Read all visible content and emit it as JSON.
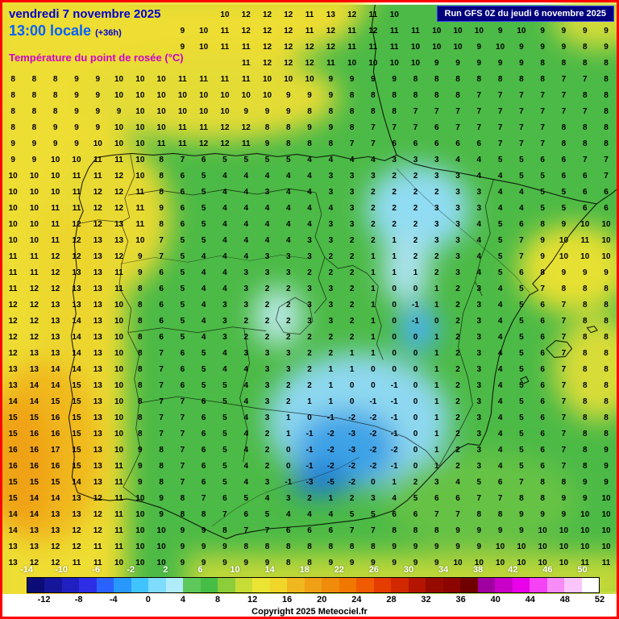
{
  "header": {
    "date_line": "vendredi 7 novembre 2025",
    "time_line": "13:00 locale",
    "time_offset": "(+36h)",
    "variable_line": "Température du point de rosée (°C)",
    "run_banner": "Run GFS 0Z du jeudi 6 novembre 2025"
  },
  "footer": {
    "copyright": "Copyright 2025 Meteociel.fr"
  },
  "colors": {
    "frame_border": "#ff0000",
    "date_text": "#0000d0",
    "time_text": "#0061ff",
    "variable_text": "#cf00cf",
    "banner_bg": "#00007d",
    "banner_text": "#ffffff"
  },
  "scale": {
    "min": -14,
    "max": 52,
    "step": 2,
    "top_labels": [
      -14,
      -10,
      -6,
      -2,
      2,
      6,
      10,
      14,
      18,
      22,
      26,
      30,
      34,
      38,
      42,
      46,
      50
    ],
    "bottom_labels": [
      -12,
      -8,
      -4,
      0,
      4,
      8,
      12,
      16,
      20,
      24,
      28,
      32,
      36,
      40,
      44,
      48,
      52
    ],
    "cell_colors": [
      "#0c0c78",
      "#16169b",
      "#2020c0",
      "#2e2ee6",
      "#2a62ff",
      "#2898ff",
      "#40c4ff",
      "#7edcff",
      "#b0ecfa",
      "#5ec85a",
      "#46be46",
      "#8cce3a",
      "#c8dc36",
      "#ece432",
      "#f0d628",
      "#f0b81e",
      "#f0a014",
      "#f08c0a",
      "#f07800",
      "#f05a00",
      "#e63c00",
      "#d22800",
      "#b41400",
      "#960a00",
      "#8c0500",
      "#700000",
      "#a000a0",
      "#c800c8",
      "#ea00ea",
      "#f542f5",
      "#f78cf7",
      "#fbc4fb",
      "#ffffff"
    ]
  },
  "grid": {
    "rows": [
      [
        "",
        "",
        "",
        "",
        "",
        "",
        "",
        "",
        "",
        "",
        10,
        12,
        12,
        12,
        11,
        13,
        12,
        11,
        10,
        "",
        "",
        "",
        "",
        "",
        "",
        "",
        "",
        "",
        ""
      ],
      [
        "",
        "",
        "",
        "",
        "",
        "",
        "",
        "",
        9,
        10,
        11,
        12,
        12,
        12,
        11,
        12,
        11,
        12,
        11,
        11,
        10,
        10,
        10,
        9,
        10,
        9,
        9,
        9,
        9
      ],
      [
        "",
        "",
        "",
        "",
        "",
        "",
        "",
        "",
        9,
        10,
        11,
        11,
        12,
        12,
        12,
        12,
        11,
        11,
        11,
        10,
        10,
        10,
        9,
        10,
        9,
        9,
        9,
        8,
        9
      ],
      [
        "",
        "",
        "",
        "",
        "",
        "",
        "",
        "",
        "",
        "",
        "",
        11,
        12,
        12,
        12,
        11,
        10,
        10,
        10,
        10,
        9,
        9,
        9,
        9,
        9,
        8,
        8,
        8,
        8
      ],
      [
        8,
        8,
        8,
        9,
        9,
        10,
        10,
        10,
        11,
        11,
        11,
        11,
        10,
        10,
        10,
        9,
        9,
        9,
        9,
        8,
        8,
        8,
        8,
        8,
        8,
        8,
        7,
        7,
        8
      ],
      [
        8,
        8,
        8,
        9,
        9,
        10,
        10,
        10,
        10,
        10,
        10,
        10,
        10,
        9,
        9,
        9,
        8,
        8,
        8,
        8,
        8,
        8,
        7,
        7,
        7,
        7,
        7,
        8,
        8
      ],
      [
        8,
        8,
        8,
        9,
        9,
        9,
        10,
        10,
        10,
        10,
        10,
        9,
        9,
        9,
        8,
        8,
        8,
        8,
        8,
        7,
        7,
        7,
        7,
        7,
        7,
        7,
        7,
        7,
        8
      ],
      [
        8,
        8,
        9,
        9,
        9,
        10,
        10,
        10,
        11,
        11,
        12,
        12,
        8,
        8,
        9,
        9,
        8,
        7,
        7,
        7,
        6,
        7,
        7,
        7,
        7,
        7,
        8,
        8,
        8
      ],
      [
        9,
        9,
        9,
        9,
        10,
        10,
        10,
        11,
        11,
        12,
        12,
        11,
        9,
        8,
        8,
        8,
        7,
        7,
        6,
        6,
        6,
        6,
        6,
        7,
        7,
        7,
        8,
        8,
        8
      ],
      [
        9,
        9,
        10,
        10,
        11,
        11,
        10,
        8,
        7,
        6,
        5,
        5,
        5,
        5,
        4,
        4,
        4,
        4,
        3,
        3,
        3,
        4,
        4,
        5,
        5,
        6,
        6,
        7,
        7
      ],
      [
        10,
        10,
        10,
        11,
        11,
        12,
        10,
        8,
        6,
        5,
        4,
        4,
        4,
        4,
        4,
        3,
        3,
        3,
        2,
        2,
        3,
        3,
        4,
        4,
        5,
        5,
        6,
        6,
        7
      ],
      [
        10,
        10,
        10,
        11,
        12,
        12,
        11,
        8,
        6,
        5,
        4,
        4,
        3,
        4,
        4,
        3,
        3,
        2,
        2,
        2,
        2,
        3,
        3,
        4,
        4,
        5,
        5,
        6,
        6
      ],
      [
        10,
        10,
        11,
        11,
        12,
        12,
        11,
        9,
        6,
        5,
        4,
        4,
        4,
        4,
        4,
        4,
        3,
        2,
        2,
        2,
        3,
        3,
        3,
        4,
        4,
        5,
        5,
        6,
        6
      ],
      [
        10,
        10,
        11,
        12,
        12,
        13,
        11,
        8,
        6,
        5,
        4,
        4,
        4,
        4,
        4,
        3,
        3,
        2,
        2,
        2,
        3,
        3,
        4,
        5,
        6,
        8,
        9,
        10,
        10
      ],
      [
        10,
        10,
        11,
        12,
        13,
        13,
        10,
        7,
        5,
        5,
        4,
        4,
        4,
        4,
        3,
        3,
        2,
        2,
        1,
        2,
        3,
        3,
        4,
        5,
        7,
        9,
        10,
        11,
        10
      ],
      [
        11,
        11,
        12,
        12,
        13,
        12,
        9,
        7,
        5,
        4,
        4,
        4,
        3,
        3,
        3,
        2,
        2,
        1,
        1,
        2,
        2,
        3,
        4,
        5,
        7,
        9,
        10,
        10,
        10
      ],
      [
        11,
        11,
        12,
        13,
        13,
        11,
        9,
        6,
        5,
        4,
        4,
        3,
        3,
        3,
        2,
        2,
        2,
        1,
        1,
        1,
        2,
        3,
        4,
        5,
        6,
        8,
        9,
        9,
        9
      ],
      [
        11,
        12,
        12,
        13,
        13,
        11,
        8,
        6,
        5,
        4,
        4,
        3,
        2,
        2,
        3,
        3,
        2,
        1,
        0,
        0,
        1,
        2,
        3,
        4,
        5,
        7,
        8,
        8,
        8
      ],
      [
        12,
        12,
        13,
        13,
        13,
        10,
        8,
        6,
        5,
        4,
        3,
        3,
        2,
        2,
        3,
        3,
        2,
        1,
        0,
        -1,
        1,
        2,
        3,
        4,
        5,
        6,
        7,
        8,
        8
      ],
      [
        12,
        12,
        13,
        14,
        13,
        10,
        8,
        6,
        5,
        4,
        3,
        2,
        2,
        2,
        3,
        3,
        2,
        1,
        0,
        -1,
        0,
        2,
        3,
        4,
        5,
        6,
        7,
        8,
        8
      ],
      [
        12,
        12,
        13,
        14,
        13,
        10,
        8,
        6,
        5,
        4,
        3,
        2,
        2,
        2,
        2,
        2,
        2,
        1,
        0,
        0,
        1,
        2,
        3,
        4,
        5,
        6,
        7,
        8,
        8
      ],
      [
        12,
        13,
        13,
        14,
        13,
        10,
        8,
        7,
        6,
        5,
        4,
        3,
        3,
        3,
        2,
        2,
        1,
        1,
        0,
        0,
        1,
        2,
        3,
        4,
        5,
        6,
        7,
        8,
        8
      ],
      [
        13,
        13,
        14,
        14,
        13,
        10,
        8,
        7,
        6,
        5,
        4,
        4,
        3,
        3,
        2,
        1,
        1,
        0,
        0,
        0,
        1,
        2,
        3,
        4,
        5,
        6,
        7,
        8,
        8
      ],
      [
        13,
        14,
        14,
        15,
        13,
        10,
        8,
        7,
        6,
        5,
        5,
        4,
        3,
        2,
        2,
        1,
        0,
        0,
        -1,
        0,
        1,
        2,
        3,
        4,
        5,
        6,
        7,
        8,
        8
      ],
      [
        14,
        14,
        15,
        15,
        13,
        10,
        8,
        7,
        7,
        6,
        5,
        4,
        3,
        2,
        1,
        1,
        0,
        -1,
        -1,
        0,
        1,
        2,
        3,
        4,
        5,
        6,
        7,
        8,
        8
      ],
      [
        15,
        15,
        16,
        15,
        13,
        10,
        8,
        7,
        7,
        6,
        5,
        4,
        3,
        1,
        0,
        -1,
        -2,
        -2,
        -1,
        0,
        1,
        2,
        3,
        4,
        5,
        6,
        7,
        8,
        8
      ],
      [
        15,
        16,
        16,
        15,
        13,
        10,
        8,
        7,
        7,
        6,
        5,
        4,
        2,
        1,
        -1,
        -2,
        -3,
        -2,
        -1,
        0,
        1,
        2,
        3,
        4,
        5,
        6,
        7,
        8,
        8
      ],
      [
        16,
        16,
        17,
        15,
        13,
        10,
        9,
        8,
        7,
        6,
        5,
        4,
        2,
        0,
        -1,
        -2,
        -3,
        -2,
        -2,
        0,
        1,
        2,
        3,
        4,
        5,
        6,
        7,
        8,
        9
      ],
      [
        16,
        16,
        16,
        15,
        13,
        11,
        9,
        8,
        7,
        6,
        5,
        4,
        2,
        0,
        -1,
        -2,
        -2,
        -2,
        -1,
        0,
        1,
        2,
        3,
        4,
        5,
        6,
        7,
        8,
        9
      ],
      [
        15,
        15,
        15,
        14,
        13,
        11,
        9,
        8,
        7,
        6,
        5,
        4,
        3,
        -1,
        -3,
        -5,
        -2,
        0,
        1,
        2,
        3,
        4,
        5,
        6,
        7,
        8,
        8,
        9,
        9
      ],
      [
        15,
        14,
        14,
        13,
        12,
        11,
        10,
        9,
        8,
        7,
        6,
        5,
        4,
        3,
        2,
        1,
        2,
        3,
        4,
        5,
        6,
        6,
        7,
        7,
        8,
        8,
        9,
        9,
        10
      ],
      [
        14,
        14,
        13,
        13,
        12,
        11,
        10,
        9,
        8,
        8,
        7,
        6,
        5,
        4,
        4,
        4,
        5,
        5,
        6,
        6,
        7,
        7,
        8,
        8,
        9,
        9,
        9,
        10,
        10
      ],
      [
        14,
        13,
        13,
        12,
        12,
        11,
        10,
        10,
        9,
        9,
        8,
        7,
        7,
        6,
        6,
        6,
        7,
        7,
        8,
        8,
        8,
        9,
        9,
        9,
        9,
        10,
        10,
        10,
        10
      ],
      [
        13,
        13,
        12,
        12,
        11,
        11,
        10,
        10,
        9,
        9,
        9,
        8,
        8,
        8,
        8,
        8,
        8,
        8,
        9,
        9,
        9,
        9,
        9,
        10,
        10,
        10,
        10,
        10,
        10
      ],
      [
        13,
        12,
        12,
        11,
        11,
        10,
        10,
        10,
        9,
        9,
        9,
        9,
        9,
        8,
        8,
        9,
        9,
        9,
        9,
        9,
        9,
        10,
        10,
        10,
        10,
        10,
        10,
        11,
        11
      ]
    ]
  }
}
